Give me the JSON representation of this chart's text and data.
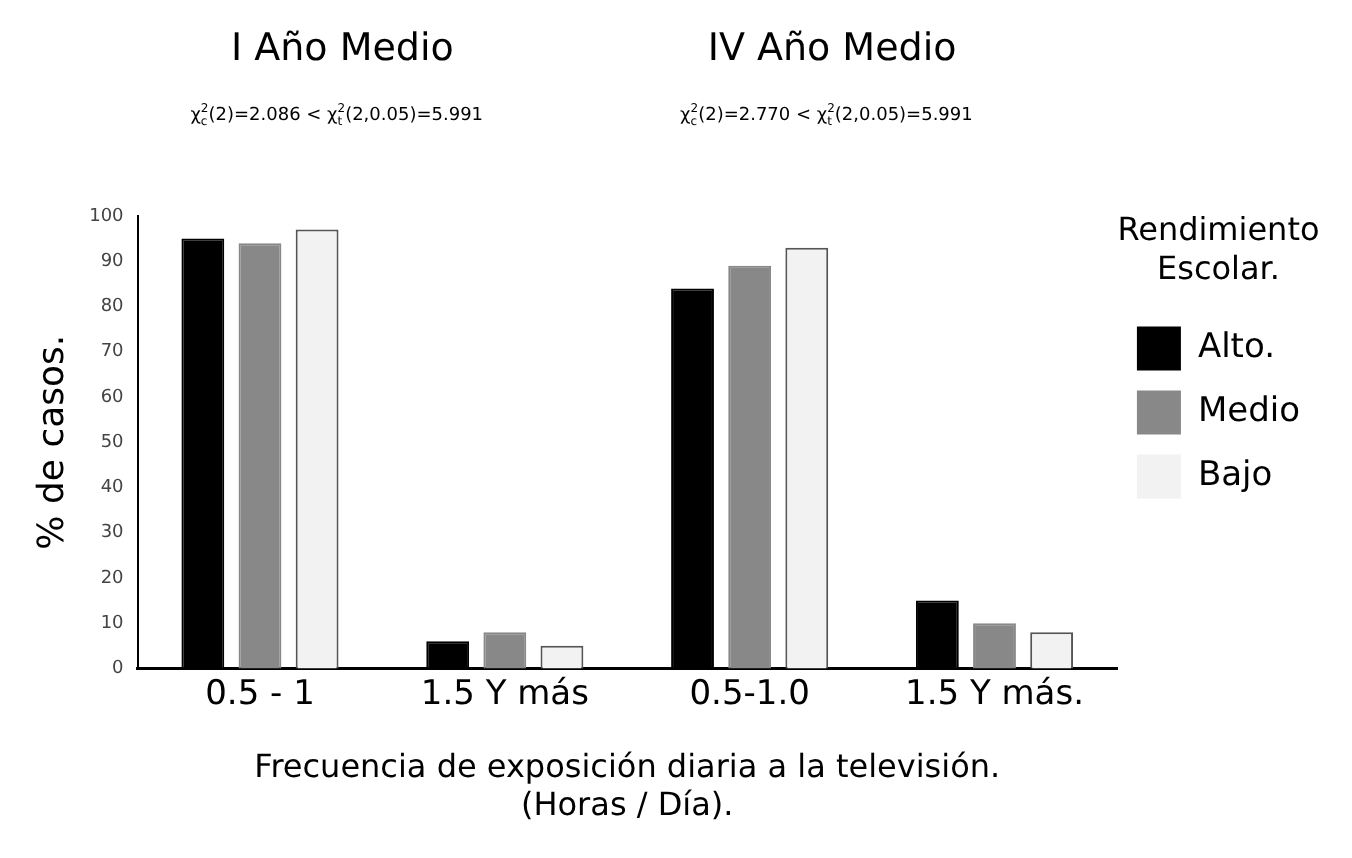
{
  "chart_data": {
    "type": "bar",
    "categories": [
      "0.5 - 1",
      "1.5 Y más",
      "0.5-1.0",
      "1.5 Y más."
    ],
    "series": [
      {
        "name": "Alto.",
        "color": "#000000",
        "values": [
          95,
          6,
          84,
          15
        ]
      },
      {
        "name": "Medio",
        "color": "#888888",
        "values": [
          94,
          8,
          89,
          10
        ]
      },
      {
        "name": "Bajo",
        "color": "#f2f2f2",
        "values": [
          97,
          5,
          93,
          8
        ]
      }
    ],
    "ylabel": "% de casos.",
    "xlabel": "Frecuencia de exposición diaria a la televisión.\n(Horas / Día).",
    "legend_title": "Rendimiento Escolar.",
    "legend": "top right",
    "annotations": [
      "I Año Medio",
      "χ$^{2}$$_{c}$(2)=2.086 < χ$^{2}$$_{t}$(2,0.05)=5.991",
      "IV Año Medio",
      "χ$^{2}$$_{c}$(2)=2.770 < χ$^{2}$$_{t}$(2,0.05)=5.991"
    ],
    "ylim": [
      0,
      100
    ],
    "yticks": [
      0,
      10,
      20,
      30,
      40,
      50,
      60,
      70,
      80,
      90,
      100
    ],
    "grid": false
  }
}
